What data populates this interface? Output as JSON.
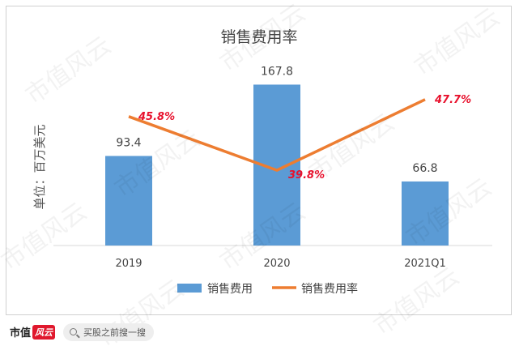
{
  "chart_data": {
    "type": "bar",
    "title": "销售费用率",
    "ylabel": "单位：百万美元",
    "categories": [
      "2019",
      "2020",
      "2021Q1"
    ],
    "series": [
      {
        "name": "销售费用",
        "type": "bar",
        "values": [
          93.4,
          167.8,
          66.8
        ],
        "labels": [
          "93.4",
          "167.8",
          "66.8"
        ],
        "color": "#5b9bd5"
      },
      {
        "name": "销售费用率",
        "type": "line",
        "values": [
          45.8,
          39.8,
          47.7
        ],
        "labels": [
          "45.8%",
          "39.8%",
          "47.7%"
        ],
        "color": "#ed7d31",
        "label_color": "#e8112d"
      }
    ],
    "bar_ylim": [
      0,
      180
    ],
    "line_ylim": [
      0,
      55
    ],
    "legend": "bottom",
    "grid": false
  },
  "watermark": "市值风云",
  "footer": {
    "brand": "市值",
    "brand_mark": "风云",
    "search_text": "买股之前搜一搜"
  }
}
